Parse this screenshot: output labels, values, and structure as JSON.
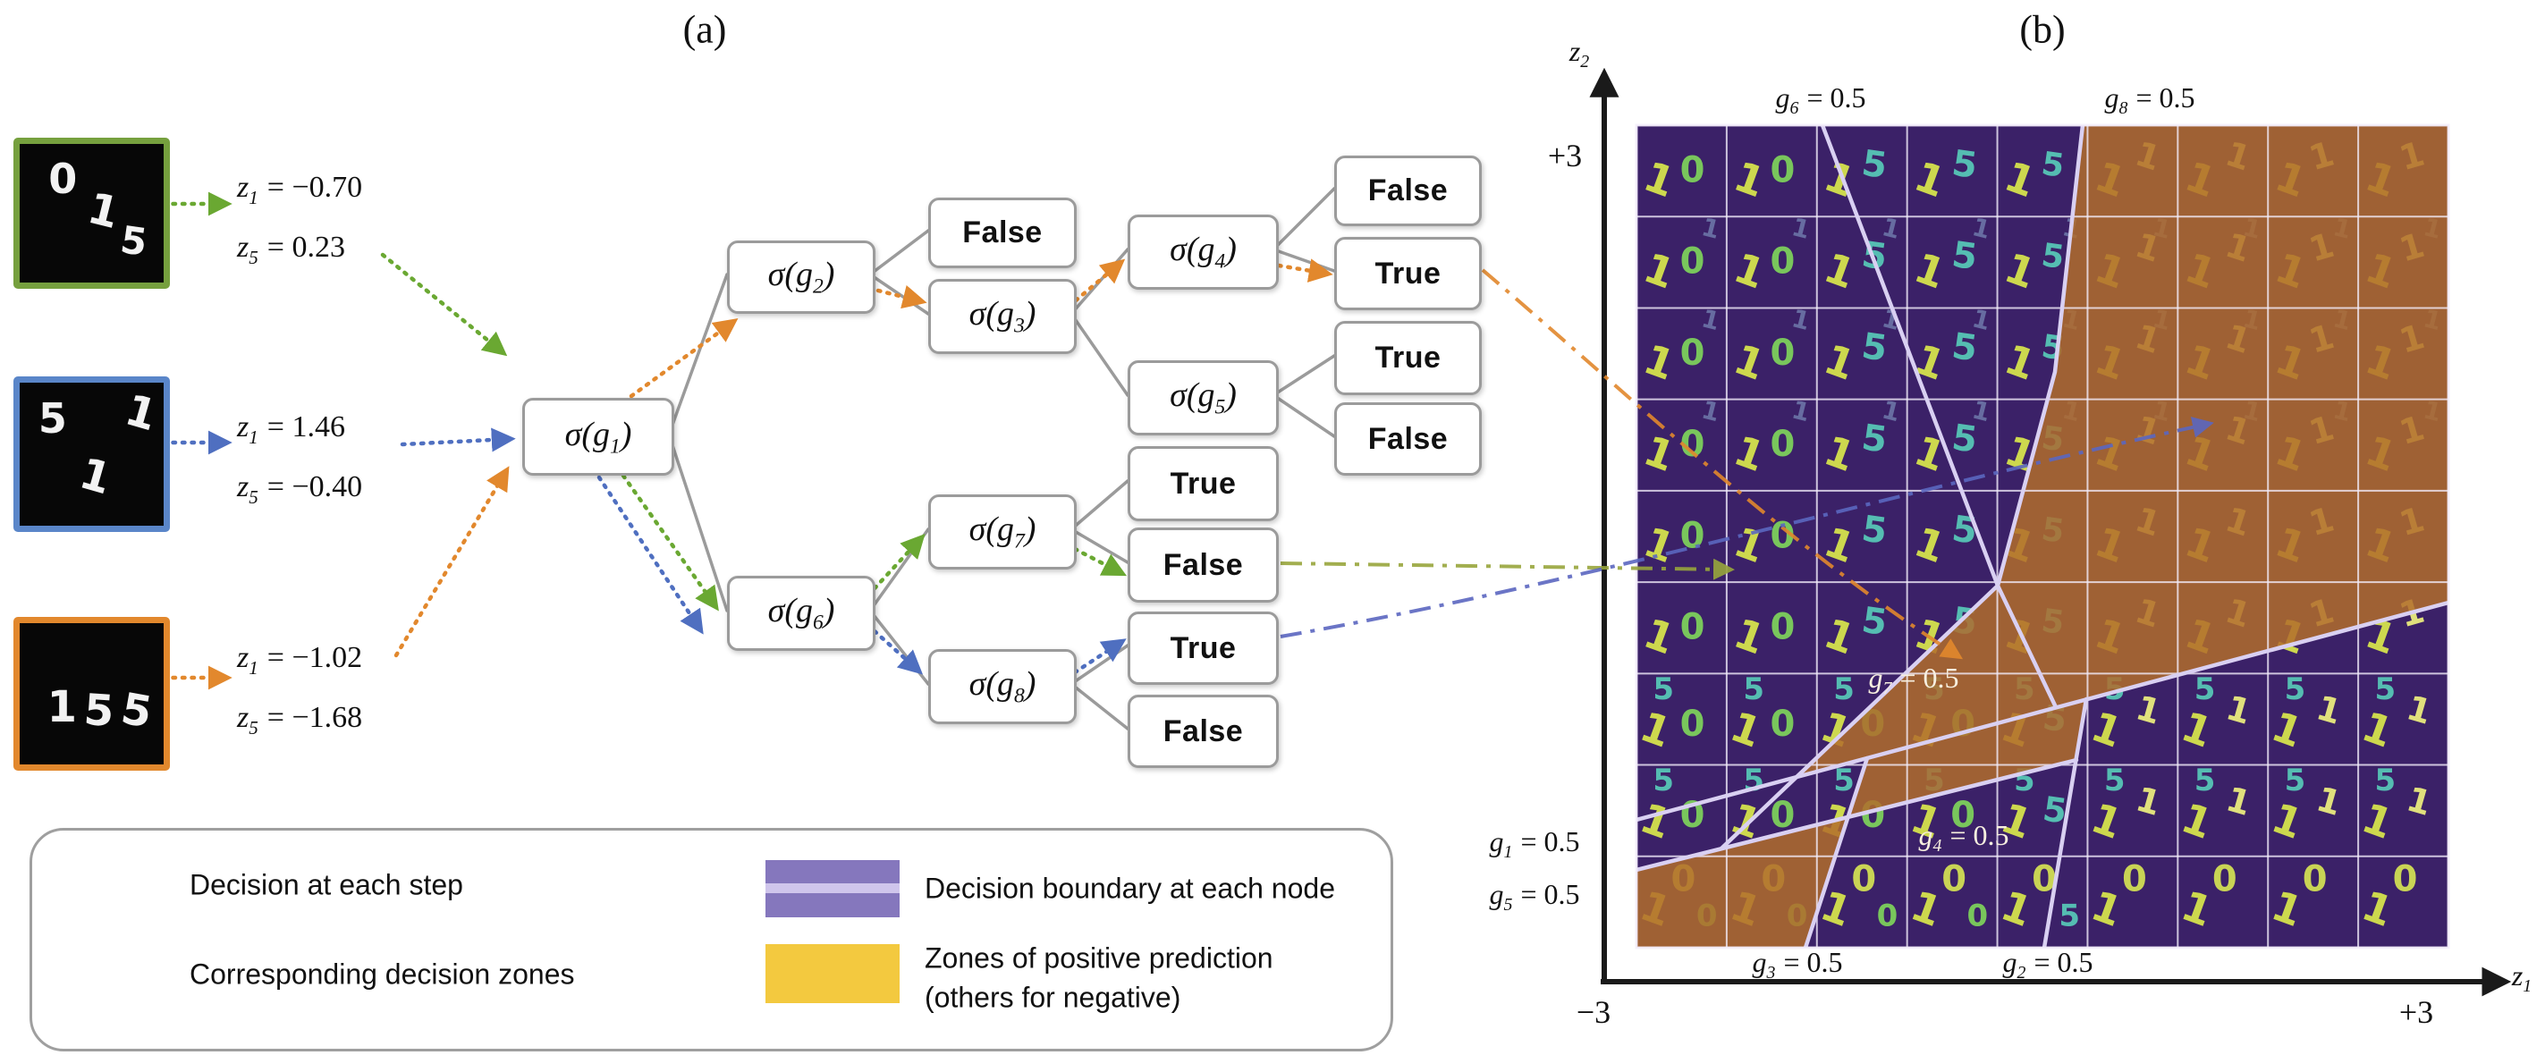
{
  "panel_titles": {
    "a": "(a)",
    "b": "(b)"
  },
  "inputs": [
    {
      "name": "sample-green",
      "border_color": "#76a03e",
      "digits": [
        "0",
        "1",
        "5"
      ],
      "z": [
        {
          "var": "z",
          "sub": "1",
          "eq": "= −0.70"
        },
        {
          "var": "z",
          "sub": "5",
          "eq": "= 0.23"
        }
      ]
    },
    {
      "name": "sample-blue",
      "border_color": "#5a86c9",
      "digits": [
        "5",
        "1",
        "1"
      ],
      "z": [
        {
          "var": "z",
          "sub": "1",
          "eq": "= 1.46"
        },
        {
          "var": "z",
          "sub": "5",
          "eq": "= −0.40"
        }
      ]
    },
    {
      "name": "sample-orange",
      "border_color": "#e2882d",
      "digits": [
        "1",
        "5",
        "5"
      ],
      "z": [
        {
          "var": "z",
          "sub": "1",
          "eq": "= −1.02"
        },
        {
          "var": "z",
          "sub": "5",
          "eq": "= −1.68"
        }
      ]
    }
  ],
  "tree": {
    "sigma_pre": "σ(g",
    "sigma_post": ")",
    "node_subs": {
      "g1": "1",
      "g2": "2",
      "g3": "3",
      "g4": "4",
      "g5": "5",
      "g6": "6",
      "g7": "7",
      "g8": "8"
    },
    "leaf_labels": {
      "f1": "False",
      "f2": "False",
      "t1": "True",
      "t2": "True",
      "f3": "False",
      "t3": "True",
      "f4": "False",
      "t4": "True",
      "f5": "False"
    }
  },
  "decision_paths": [
    {
      "input": "sample-green",
      "color": "#6aa832",
      "steps": [
        "σ(g1)",
        "σ(g6)",
        "σ(g7)",
        "False"
      ]
    },
    {
      "input": "sample-blue",
      "color": "#4f6fc0",
      "steps": [
        "σ(g1)",
        "σ(g6)",
        "σ(g8)",
        "True"
      ]
    },
    {
      "input": "sample-orange",
      "color": "#e2882d",
      "steps": [
        "σ(g1)",
        "σ(g2)",
        "σ(g3)",
        "σ(g4)",
        "True"
      ]
    }
  ],
  "legend": {
    "items": [
      {
        "label": "Decision at each step",
        "marker": "dotted-arrow"
      },
      {
        "label": "Corresponding decision zones",
        "marker": "dashdot-arrow"
      },
      {
        "label": "Decision boundary at each node",
        "marker": "purple-swatch",
        "color": "#8577bd"
      },
      {
        "label": "Zones of positive prediction",
        "label2": "(others for negative)",
        "marker": "yellow-swatch",
        "color": "#f3c93f"
      }
    ]
  },
  "plot": {
    "axis_x": {
      "var": "z",
      "sub": "1",
      "min": "−3",
      "max": "+3"
    },
    "axis_y": {
      "var": "z",
      "sub": "2",
      "max": "+3"
    },
    "boundaries": {
      "g6": {
        "var": "g",
        "sub": "6",
        "eq": "= 0.5",
        "placement": "top"
      },
      "g8": {
        "var": "g",
        "sub": "8",
        "eq": "= 0.5",
        "placement": "top"
      },
      "g1": {
        "var": "g",
        "sub": "1",
        "eq": "= 0.5",
        "placement": "left"
      },
      "g5": {
        "var": "g",
        "sub": "5",
        "eq": "= 0.5",
        "placement": "left"
      },
      "g3": {
        "var": "g",
        "sub": "3",
        "eq": "= 0.5",
        "placement": "bottom"
      },
      "g2": {
        "var": "g",
        "sub": "2",
        "eq": "= 0.5",
        "placement": "bottom"
      },
      "g7": {
        "var": "g",
        "sub": "7",
        "eq": "= 0.5",
        "placement": "inside"
      },
      "g4": {
        "var": "g",
        "sub": "4",
        "eq": "= 0.5",
        "placement": "inside"
      }
    },
    "positive_zone_color": "#b06f2e",
    "background_color": "#3b2168",
    "boundary_line_color": "#d9d0f2",
    "grid_rows": 9,
    "grid_cols": 9
  },
  "latent_grid": {
    "rows": 9,
    "cols": 9,
    "main_digit": "1",
    "second_digit_by_col": [
      "0",
      "0",
      "5",
      "5",
      "5",
      "1",
      "1",
      "1",
      "1"
    ],
    "lower_rows_digit": "5",
    "bottom_row_digit": "0"
  }
}
